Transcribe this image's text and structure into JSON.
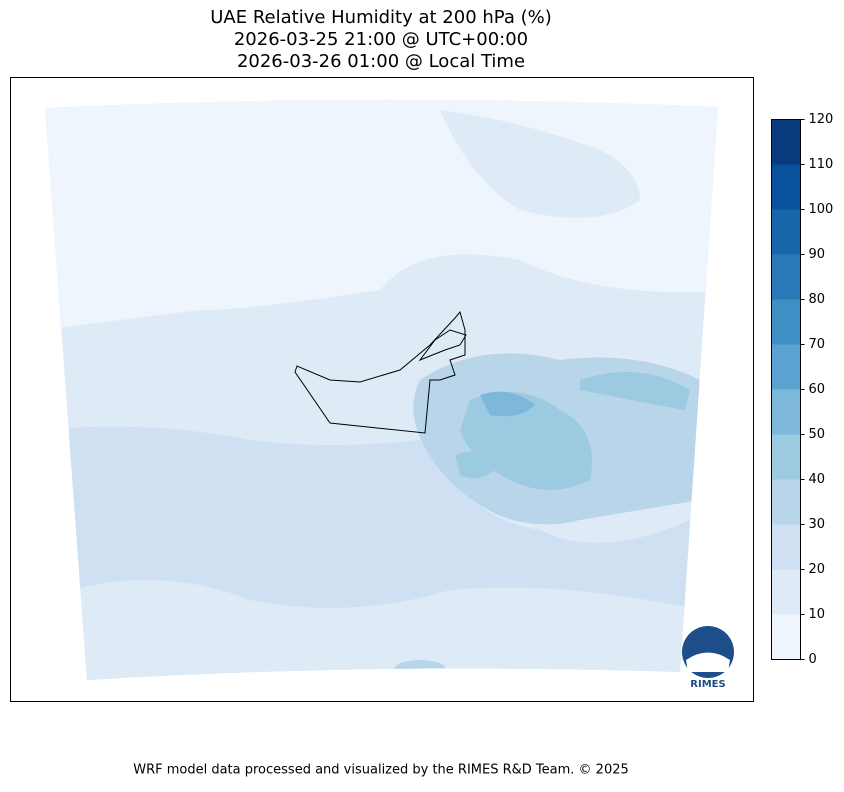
{
  "map": {
    "title_lines": [
      "UAE Relative Humidity at 200 hPa (%)",
      "2026-03-25 21:00 @ UTC+00:00",
      "2026-03-26 01:00 @ Local Time"
    ],
    "colorbar": {
      "ylim": [
        0,
        120
      ],
      "levels": [
        0,
        10,
        20,
        30,
        40,
        50,
        60,
        70,
        80,
        90,
        100,
        110,
        120
      ],
      "yticks": [
        0,
        10,
        20,
        30,
        40,
        50,
        60,
        70,
        80,
        90,
        100,
        110,
        120
      ],
      "colors": [
        "#eff5fc",
        "#deebf7",
        "#cee0f2",
        "#b8d5ea",
        "#9ccae1",
        "#7db8da",
        "#5ba3d0",
        "#3f8fc5",
        "#2a7ab9",
        "#1865ac",
        "#08519c",
        "#083b7c"
      ]
    },
    "logo_text": "RIMES",
    "footer": "WRF model data processed and visualized by the RIMES R&D Team. © 2025"
  }
}
